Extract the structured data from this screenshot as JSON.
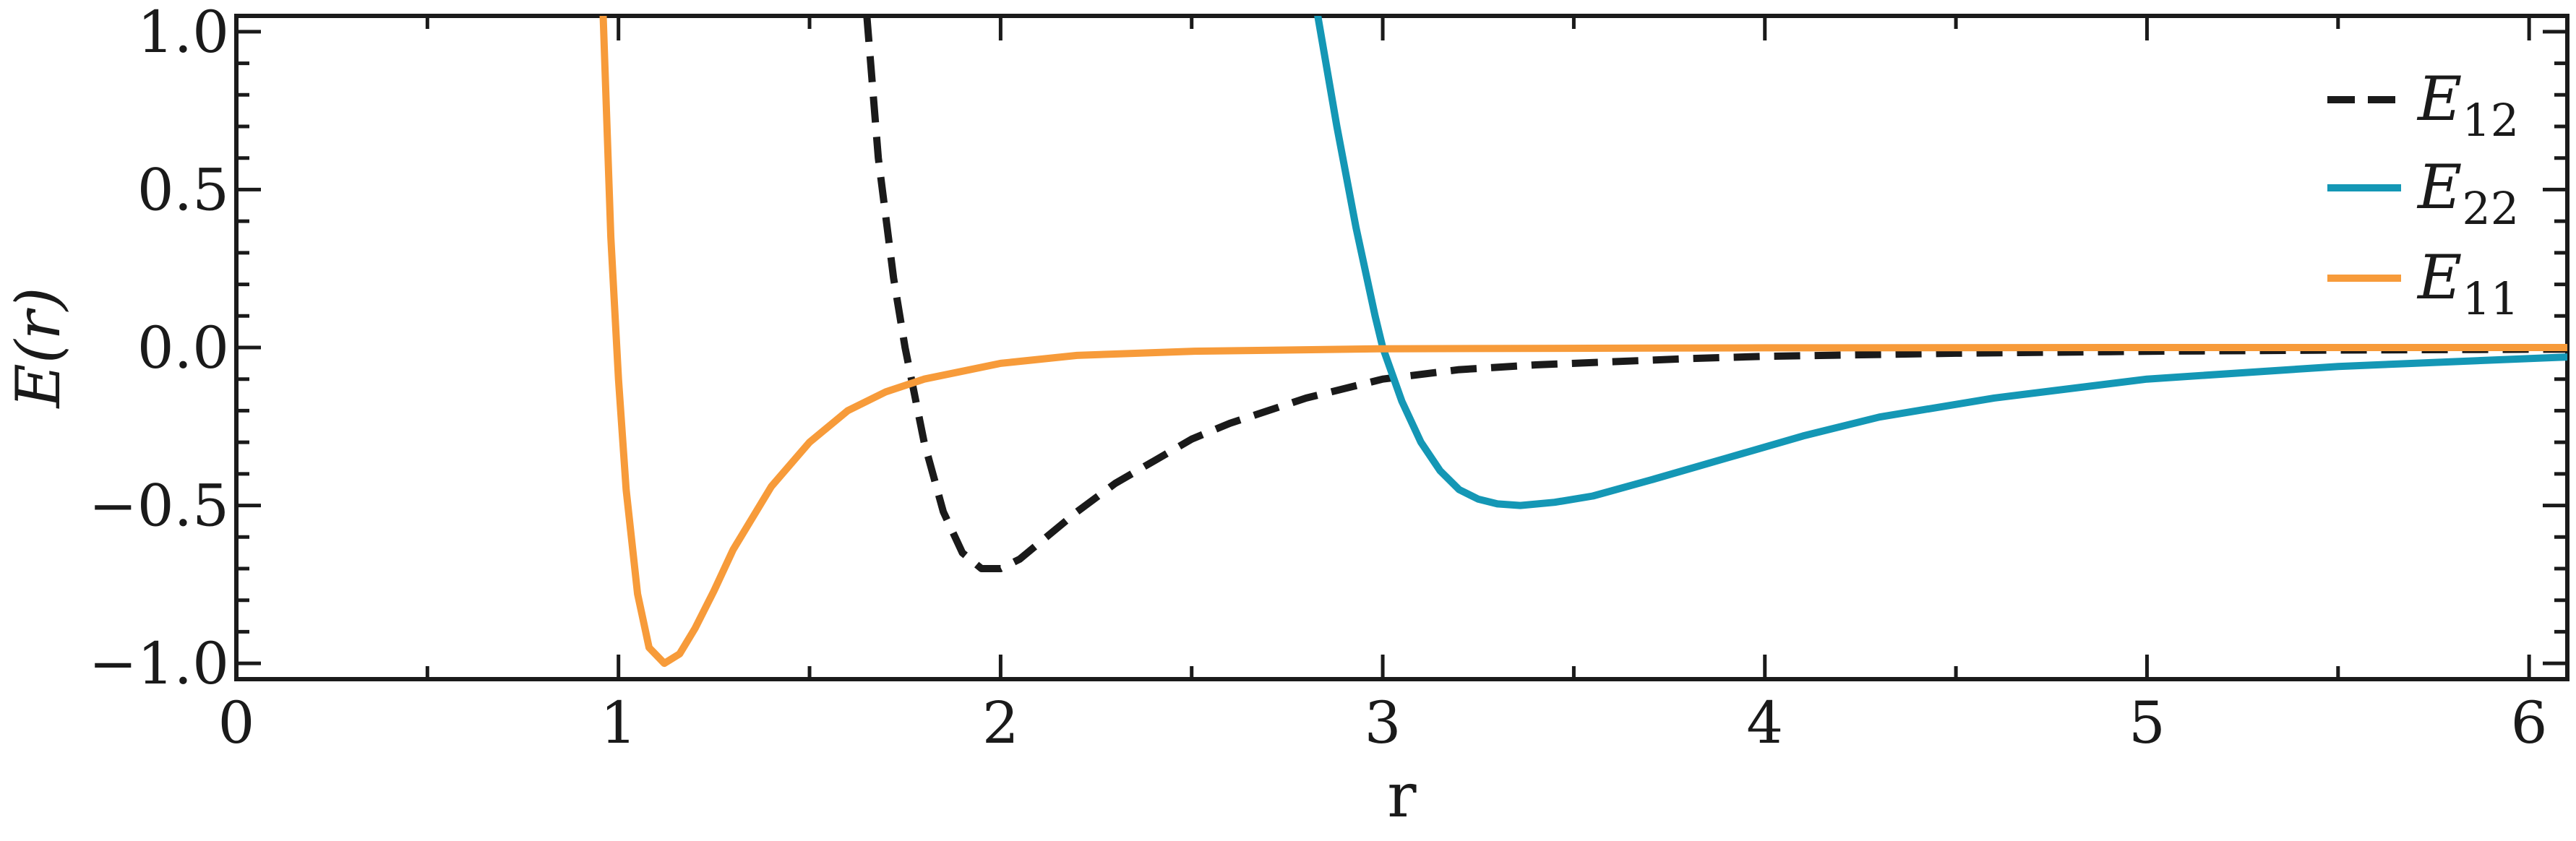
{
  "chart_data": {
    "type": "line",
    "title": "",
    "xlabel": "r",
    "ylabel": "E(r)",
    "xlim": [
      0,
      6.1
    ],
    "ylim": [
      -1.05,
      1.05
    ],
    "xticks": [
      0,
      1,
      2,
      3,
      4,
      5,
      6
    ],
    "yticks": [
      -1.0,
      -0.5,
      0.0,
      0.5,
      1.0
    ],
    "xtick_labels": [
      "0",
      "1",
      "2",
      "3",
      "4",
      "5",
      "6"
    ],
    "ytick_labels": [
      "−1.0",
      "−0.5",
      "0.0",
      "0.5",
      "1.0"
    ],
    "grid": false,
    "legend_position": "top-right",
    "series": [
      {
        "name": "E",
        "name_sub": "12",
        "color": "#1a1a1a",
        "dash": "dashed",
        "x": [
          1.65,
          1.68,
          1.72,
          1.75,
          1.8,
          1.85,
          1.9,
          1.95,
          2.0,
          2.05,
          2.1,
          2.2,
          2.3,
          2.4,
          2.5,
          2.6,
          2.7,
          2.8,
          3.0,
          3.2,
          3.4,
          3.6,
          3.8,
          4.0,
          4.5,
          5.0,
          5.5,
          6.1
        ],
        "y": [
          1.05,
          0.6,
          0.22,
          0.0,
          -0.3,
          -0.52,
          -0.65,
          -0.7,
          -0.7,
          -0.67,
          -0.62,
          -0.52,
          -0.43,
          -0.36,
          -0.29,
          -0.24,
          -0.2,
          -0.16,
          -0.1,
          -0.07,
          -0.055,
          -0.045,
          -0.035,
          -0.028,
          -0.018,
          -0.012,
          -0.008,
          -0.005
        ]
      },
      {
        "name": "E",
        "name_sub": "22",
        "color": "#1497b5",
        "dash": "solid",
        "x": [
          2.83,
          2.88,
          2.93,
          2.98,
          3.0,
          3.05,
          3.1,
          3.15,
          3.2,
          3.25,
          3.3,
          3.36,
          3.45,
          3.55,
          3.7,
          3.9,
          4.1,
          4.3,
          4.6,
          5.0,
          5.5,
          6.1
        ],
        "y": [
          1.05,
          0.7,
          0.38,
          0.1,
          0.0,
          -0.17,
          -0.3,
          -0.39,
          -0.45,
          -0.48,
          -0.495,
          -0.5,
          -0.49,
          -0.47,
          -0.42,
          -0.35,
          -0.28,
          -0.22,
          -0.16,
          -0.1,
          -0.06,
          -0.03
        ]
      },
      {
        "name": "E",
        "name_sub": "11",
        "color": "#f79b3a",
        "dash": "solid",
        "x": [
          0.96,
          0.98,
          1.0,
          1.02,
          1.05,
          1.08,
          1.12,
          1.16,
          1.2,
          1.25,
          1.3,
          1.4,
          1.5,
          1.6,
          1.7,
          1.8,
          2.0,
          2.2,
          2.5,
          3.0,
          4.0,
          5.0,
          6.1
        ],
        "y": [
          1.05,
          0.35,
          -0.1,
          -0.45,
          -0.78,
          -0.95,
          -1.0,
          -0.97,
          -0.89,
          -0.77,
          -0.64,
          -0.44,
          -0.3,
          -0.2,
          -0.14,
          -0.1,
          -0.05,
          -0.025,
          -0.012,
          -0.004,
          -0.001,
          0.0,
          0.0
        ]
      }
    ]
  }
}
